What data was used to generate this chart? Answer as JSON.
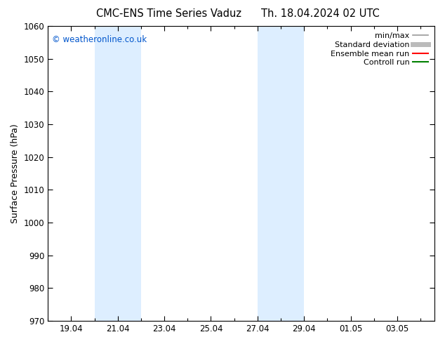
{
  "title_left": "CMC-ENS Time Series Vaduz",
  "title_right": "Th. 18.04.2024 02 UTC",
  "ylabel": "Surface Pressure (hPa)",
  "ylim": [
    970,
    1060
  ],
  "yticks": [
    970,
    980,
    990,
    1000,
    1010,
    1020,
    1030,
    1040,
    1050,
    1060
  ],
  "xtick_vals": [
    19,
    21,
    23,
    25,
    27,
    29,
    31,
    33
  ],
  "xlabel_ticks": [
    "19.04",
    "21.04",
    "23.04",
    "25.04",
    "27.04",
    "29.04",
    "01.05",
    "03.05"
  ],
  "xlim": [
    18.0,
    34.6
  ],
  "shaded_bands": [
    {
      "x_start": 20.0,
      "x_end": 22.0
    },
    {
      "x_start": 27.0,
      "x_end": 29.0
    }
  ],
  "shaded_color": "#ddeeff",
  "watermark_text": "© weatheronline.co.uk",
  "watermark_color": "#0055cc",
  "legend_items": [
    {
      "label": "min/max",
      "color": "#999999",
      "lw": 1.2
    },
    {
      "label": "Standard deviation",
      "color": "#bbbbbb",
      "lw": 5
    },
    {
      "label": "Ensemble mean run",
      "color": "#ff0000",
      "lw": 1.5
    },
    {
      "label": "Controll run",
      "color": "#008000",
      "lw": 1.5
    }
  ],
  "bg_color": "#ffffff",
  "plot_bg_color": "#ffffff",
  "tick_label_fontsize": 8.5,
  "axis_label_fontsize": 9,
  "title_fontsize": 10.5,
  "watermark_fontsize": 8.5,
  "legend_fontsize": 8
}
